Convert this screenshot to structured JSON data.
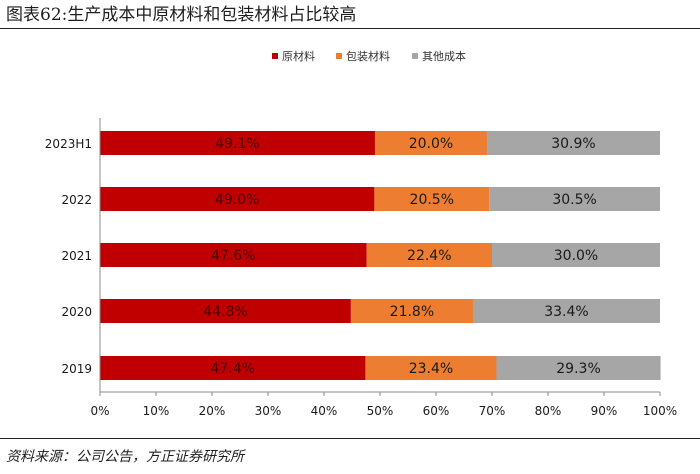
{
  "figure": {
    "title": "图表62:生产成本中原材料和包装材料占比较高",
    "source": "资料来源：公司公告，方正证券研究所"
  },
  "chart_data": {
    "type": "bar",
    "orientation": "horizontal",
    "stacked": true,
    "categories": [
      "2023H1",
      "2022",
      "2021",
      "2020",
      "2019"
    ],
    "series": [
      {
        "name": "原材料",
        "color": "#c00000",
        "values": [
          49.1,
          49.0,
          47.6,
          44.8,
          47.4
        ],
        "labels": [
          "49.1%",
          "49.0%",
          "47.6%",
          "44.8%",
          "47.4%"
        ]
      },
      {
        "name": "包装材料",
        "color": "#ed7d31",
        "values": [
          20.0,
          20.5,
          22.4,
          21.8,
          23.4
        ],
        "labels": [
          "20.0%",
          "20.5%",
          "22.4%",
          "21.8%",
          "23.4%"
        ]
      },
      {
        "name": "其他成本",
        "color": "#a6a6a6",
        "values": [
          30.9,
          30.5,
          30.0,
          33.4,
          29.3
        ],
        "labels": [
          "30.9%",
          "30.5%",
          "30.0%",
          "33.4%",
          "29.3%"
        ]
      }
    ],
    "xlim": [
      0,
      100
    ],
    "xticks": [
      "0%",
      "10%",
      "20%",
      "30%",
      "40%",
      "50%",
      "60%",
      "70%",
      "80%",
      "90%",
      "100%"
    ],
    "legend_position": "top-center",
    "grid": false
  }
}
